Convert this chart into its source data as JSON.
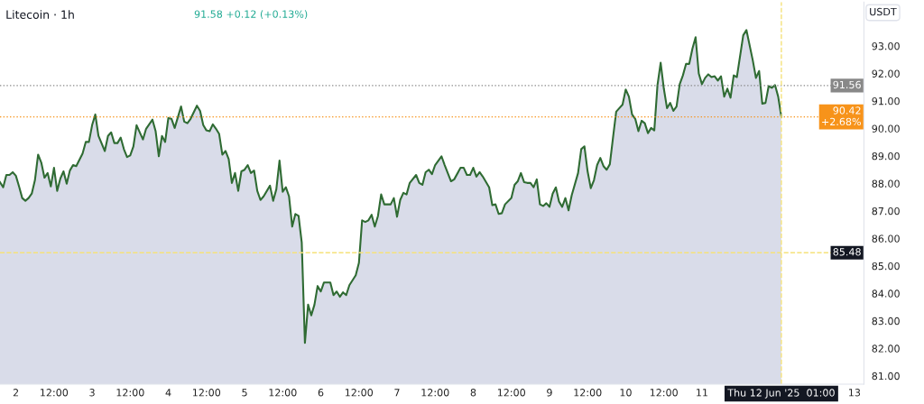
{
  "chart_data": {
    "type": "area",
    "title": "Litecoin · 1h",
    "subtitle": "91.58 +0.12 (+0.13%)",
    "ylabel": "USDT",
    "x": [
      "2025-06-01T19:00",
      "2025-06-01T20:00",
      "2025-06-01T21:00",
      "2025-06-01T22:00",
      "2025-06-01T23:00",
      "2025-06-02T00:00",
      "2025-06-02T01:00",
      "2025-06-02T02:00",
      "2025-06-02T03:00",
      "2025-06-02T04:00",
      "2025-06-02T05:00",
      "2025-06-02T06:00",
      "2025-06-02T07:00",
      "2025-06-02T08:00",
      "2025-06-02T09:00",
      "2025-06-02T10:00",
      "2025-06-02T11:00",
      "2025-06-02T12:00",
      "2025-06-02T13:00",
      "2025-06-02T14:00",
      "2025-06-02T15:00",
      "2025-06-02T16:00",
      "2025-06-02T17:00",
      "2025-06-02T18:00",
      "2025-06-02T19:00",
      "2025-06-02T21:00",
      "2025-06-02T22:00",
      "2025-06-02T23:00",
      "2025-06-03T00:00",
      "2025-06-03T01:00",
      "2025-06-03T02:00",
      "2025-06-03T04:00",
      "2025-06-03T05:00",
      "2025-06-03T06:00",
      "2025-06-03T07:00",
      "2025-06-03T08:00",
      "2025-06-03T09:00",
      "2025-06-03T10:00",
      "2025-06-03T11:00",
      "2025-06-03T12:00",
      "2025-06-03T13:00",
      "2025-06-03T14:00",
      "2025-06-03T16:00",
      "2025-06-03T17:00",
      "2025-06-03T19:00",
      "2025-06-03T20:00",
      "2025-06-03T21:00",
      "2025-06-03T22:00",
      "2025-06-03T23:00",
      "2025-06-04T00:00",
      "2025-06-04T01:00",
      "2025-06-04T02:00",
      "2025-06-04T04:00",
      "2025-06-04T05:00",
      "2025-06-04T06:00",
      "2025-06-04T07:00",
      "2025-06-04T09:00",
      "2025-06-04T10:00",
      "2025-06-04T11:00",
      "2025-06-04T12:00",
      "2025-06-04T13:00",
      "2025-06-04T14:00",
      "2025-06-04T15:00",
      "2025-06-04T16:00",
      "2025-06-04T17:00",
      "2025-06-04T18:00",
      "2025-06-04T19:00",
      "2025-06-04T20:00",
      "2025-06-04T21:00",
      "2025-06-04T22:00",
      "2025-06-04T23:00",
      "2025-06-05T00:00",
      "2025-06-05T01:00",
      "2025-06-05T02:00",
      "2025-06-05T03:00",
      "2025-06-05T04:00",
      "2025-06-05T05:00",
      "2025-06-05T06:00",
      "2025-06-05T08:00",
      "2025-06-05T09:00",
      "2025-06-05T10:00",
      "2025-06-05T11:00",
      "2025-06-05T12:00",
      "2025-06-05T13:00",
      "2025-06-05T14:00",
      "2025-06-05T15:00",
      "2025-06-05T16:00",
      "2025-06-05T17:00",
      "2025-06-05T18:00",
      "2025-06-05T19:00",
      "2025-06-05T20:00",
      "2025-06-05T21:00",
      "2025-06-05T22:00",
      "2025-06-05T23:00",
      "2025-06-06T00:00",
      "2025-06-06T01:00",
      "2025-06-06T03:00",
      "2025-06-06T04:00",
      "2025-06-06T05:00",
      "2025-06-06T06:00",
      "2025-06-06T07:00",
      "2025-06-06T08:00",
      "2025-06-06T09:00",
      "2025-06-06T11:00",
      "2025-06-06T12:00",
      "2025-06-06T13:00",
      "2025-06-06T14:00",
      "2025-06-06T15:00",
      "2025-06-06T16:00",
      "2025-06-06T17:00",
      "2025-06-06T18:00",
      "2025-06-06T19:00",
      "2025-06-06T20:00",
      "2025-06-06T22:00",
      "2025-06-06T23:00",
      "2025-06-07T00:00",
      "2025-06-07T01:00",
      "2025-06-07T02:00",
      "2025-06-07T03:00",
      "2025-06-07T04:00",
      "2025-06-07T06:00",
      "2025-06-07T07:00",
      "2025-06-07T08:00",
      "2025-06-07T09:00",
      "2025-06-07T10:00",
      "2025-06-07T11:00",
      "2025-06-07T12:00",
      "2025-06-07T14:00",
      "2025-06-07T15:00",
      "2025-06-07T17:00",
      "2025-06-07T18:00",
      "2025-06-07T20:00",
      "2025-06-07T21:00",
      "2025-06-07T22:00",
      "2025-06-07T23:00",
      "2025-06-08T00:00",
      "2025-06-08T01:00",
      "2025-06-08T02:00",
      "2025-06-08T03:00",
      "2025-06-08T05:00",
      "2025-06-08T06:00",
      "2025-06-08T07:00",
      "2025-06-08T08:00",
      "2025-06-08T09:00",
      "2025-06-08T10:00",
      "2025-06-08T12:00",
      "2025-06-08T13:00",
      "2025-06-08T14:00",
      "2025-06-08T15:00",
      "2025-06-08T16:00",
      "2025-06-08T17:00",
      "2025-06-08T18:00",
      "2025-06-08T19:00",
      "2025-06-08T20:00",
      "2025-06-08T21:00",
      "2025-06-08T22:00",
      "2025-06-08T23:00",
      "2025-06-09T00:00",
      "2025-06-09T01:00",
      "2025-06-09T02:00",
      "2025-06-09T03:00",
      "2025-06-09T04:00",
      "2025-06-09T05:00",
      "2025-06-09T06:00",
      "2025-06-09T07:00",
      "2025-06-09T09:00",
      "2025-06-09T10:00",
      "2025-06-09T11:00",
      "2025-06-09T12:00",
      "2025-06-09T13:00",
      "2025-06-09T14:00",
      "2025-06-09T15:00",
      "2025-06-09T16:00",
      "2025-06-09T17:00",
      "2025-06-09T18:00",
      "2025-06-09T19:00",
      "2025-06-09T20:00",
      "2025-06-09T21:00",
      "2025-06-09T22:00",
      "2025-06-09T23:00",
      "2025-06-10T00:00",
      "2025-06-10T01:00",
      "2025-06-10T02:00",
      "2025-06-10T03:00",
      "2025-06-10T04:00",
      "2025-06-10T05:00",
      "2025-06-10T06:00",
      "2025-06-10T07:00",
      "2025-06-10T08:00",
      "2025-06-10T09:00",
      "2025-06-10T10:00",
      "2025-06-10T11:00",
      "2025-06-10T12:00",
      "2025-06-10T13:00",
      "2025-06-10T14:00",
      "2025-06-10T15:00",
      "2025-06-10T16:00",
      "2025-06-10T17:00",
      "2025-06-10T18:00",
      "2025-06-10T19:00",
      "2025-06-10T20:00",
      "2025-06-10T21:00",
      "2025-06-10T22:00",
      "2025-06-10T23:00",
      "2025-06-11T00:00",
      "2025-06-11T01:00",
      "2025-06-11T02:00",
      "2025-06-11T03:00",
      "2025-06-11T04:00",
      "2025-06-11T05:00",
      "2025-06-11T06:00",
      "2025-06-11T07:00",
      "2025-06-11T08:00",
      "2025-06-11T09:00",
      "2025-06-11T10:00",
      "2025-06-11T11:00",
      "2025-06-11T13:00",
      "2025-06-11T14:00",
      "2025-06-11T16:00",
      "2025-06-11T17:00",
      "2025-06-11T18:00",
      "2025-06-11T19:00",
      "2025-06-11T20:00",
      "2025-06-11T21:00",
      "2025-06-11T22:00",
      "2025-06-11T23:00",
      "2025-06-12T00:00",
      "2025-06-12T01:00"
    ],
    "series": [
      {
        "color": "#2f6b33",
        "values": [
          88.05,
          87.86,
          88.31,
          88.31,
          88.41,
          88.28,
          87.89,
          87.47,
          87.37,
          87.47,
          87.63,
          88.12,
          89.05,
          88.76,
          88.21,
          88.38,
          87.89,
          88.57,
          87.73,
          88.18,
          88.44,
          87.99,
          88.47,
          88.67,
          88.63,
          89.09,
          89.51,
          89.51,
          90.12,
          90.51,
          89.73,
          89.18,
          89.73,
          89.86,
          89.47,
          89.47,
          89.67,
          89.25,
          88.96,
          89.02,
          89.35,
          90.12,
          89.6,
          89.99,
          90.32,
          89.9,
          88.99,
          89.73,
          89.51,
          90.38,
          90.35,
          90.02,
          90.8,
          90.25,
          90.19,
          90.35,
          90.83,
          90.64,
          90.12,
          89.93,
          89.9,
          90.15,
          89.99,
          89.8,
          89.05,
          89.18,
          88.89,
          88.02,
          88.38,
          87.73,
          88.44,
          88.5,
          88.67,
          88.38,
          88.47,
          87.73,
          87.4,
          87.53,
          87.92,
          87.37,
          87.79,
          88.83,
          87.7,
          87.86,
          87.53,
          86.43,
          86.89,
          86.82,
          85.85,
          82.2,
          83.59,
          83.2,
          83.59,
          84.27,
          84.07,
          84.4,
          84.4,
          83.94,
          84.07,
          83.88,
          84.04,
          83.94,
          84.3,
          84.66,
          85.11,
          86.66,
          86.6,
          86.66,
          86.86,
          86.43,
          86.82,
          87.6,
          87.24,
          87.24,
          87.47,
          86.79,
          87.4,
          87.66,
          87.6,
          88.02,
          88.31,
          88.02,
          87.95,
          88.41,
          88.5,
          88.34,
          88.67,
          88.99,
          88.67,
          88.08,
          88.15,
          88.57,
          88.57,
          88.31,
          88.31,
          88.57,
          88.25,
          88.41,
          88.25,
          87.86,
          87.21,
          87.24,
          86.89,
          86.92,
          87.24,
          87.47,
          87.95,
          88.08,
          88.38,
          88.05,
          88.02,
          88.02,
          87.86,
          88.15,
          87.24,
          87.18,
          87.28,
          87.15,
          87.63,
          87.86,
          87.34,
          87.15,
          87.47,
          87.02,
          87.57,
          88.38,
          89.25,
          89.35,
          88.44,
          87.83,
          88.12,
          88.67,
          88.93,
          88.63,
          88.5,
          88.7,
          89.67,
          90.61,
          90.74,
          90.87,
          91.42,
          91.16,
          90.51,
          90.35,
          89.9,
          90.28,
          90.19,
          89.83,
          90.02,
          89.93,
          91.58,
          92.39,
          91.45,
          90.74,
          90.93,
          90.64,
          90.8,
          91.61,
          91.93,
          92.35,
          92.35,
          92.9,
          93.32,
          92.0,
          91.61,
          91.84,
          91.97,
          91.87,
          91.9,
          91.74,
          91.9,
          91.16,
          91.45,
          91.12,
          91.93,
          91.87,
          93.39,
          93.58,
          92.48,
          91.84,
          92.09,
          90.9,
          90.93,
          91.54,
          91.48,
          91.58,
          91.16,
          90.42
        ]
      }
    ],
    "xlim": [
      "2025-06-01T19:00",
      "2025-06-13T03:00"
    ],
    "xticks": [
      {
        "value": "2025-06-02T00:00",
        "label": "2"
      },
      {
        "value": "2025-06-02T12:00",
        "label": "12:00"
      },
      {
        "value": "2025-06-03T00:00",
        "label": "3"
      },
      {
        "value": "2025-06-03T12:00",
        "label": "12:00"
      },
      {
        "value": "2025-06-04T00:00",
        "label": "4"
      },
      {
        "value": "2025-06-04T12:00",
        "label": "12:00"
      },
      {
        "value": "2025-06-05T00:00",
        "label": "5"
      },
      {
        "value": "2025-06-05T12:00",
        "label": "12:00"
      },
      {
        "value": "2025-06-06T00:00",
        "label": "6"
      },
      {
        "value": "2025-06-06T12:00",
        "label": "12:00"
      },
      {
        "value": "2025-06-07T00:00",
        "label": "7"
      },
      {
        "value": "2025-06-07T12:00",
        "label": "12:00"
      },
      {
        "value": "2025-06-08T00:00",
        "label": "8"
      },
      {
        "value": "2025-06-08T12:00",
        "label": "12:00"
      },
      {
        "value": "2025-06-09T00:00",
        "label": "9"
      },
      {
        "value": "2025-06-09T12:00",
        "label": "12:00"
      },
      {
        "value": "2025-06-10T00:00",
        "label": "10"
      },
      {
        "value": "2025-06-10T12:00",
        "label": "12:00"
      },
      {
        "value": "2025-06-11T00:00",
        "label": "11"
      },
      {
        "value": "2025-06-13T00:00",
        "label": "13"
      }
    ],
    "ylim": [
      80.7,
      94.6
    ],
    "yticks": [
      {
        "value": 81,
        "label": "81.00"
      },
      {
        "value": 82,
        "label": "82.00"
      },
      {
        "value": 83,
        "label": "83.00"
      },
      {
        "value": 84,
        "label": "84.00"
      },
      {
        "value": 85,
        "label": "85.00"
      },
      {
        "value": 86,
        "label": "86.00"
      },
      {
        "value": 87,
        "label": "87.00"
      },
      {
        "value": 88,
        "label": "88.00"
      },
      {
        "value": 89,
        "label": "89.00"
      },
      {
        "value": 90,
        "label": "90.00"
      },
      {
        "value": 91,
        "label": "91.00"
      },
      {
        "value": 92,
        "label": "92.00"
      },
      {
        "value": 93,
        "label": "93.00"
      }
    ],
    "ref_lines": [
      {
        "axis": "y",
        "value": 91.56,
        "label": "91.56",
        "color": "#888888",
        "line_style": "dotted"
      },
      {
        "axis": "y",
        "value": 90.42,
        "label": "90.42 +2.68%",
        "color": "#f7931a",
        "line_style": "dotted"
      },
      {
        "axis": "y",
        "value": 85.48,
        "label": "85.48",
        "color": "#f5e27a",
        "line_style": "dashed"
      },
      {
        "axis": "x",
        "value": "2025-06-12T01:00",
        "label": "Thu 12 Jun '25  01:00",
        "color": "#f5e27a",
        "line_style": "dashed"
      }
    ],
    "grid": false,
    "legend": false
  }
}
